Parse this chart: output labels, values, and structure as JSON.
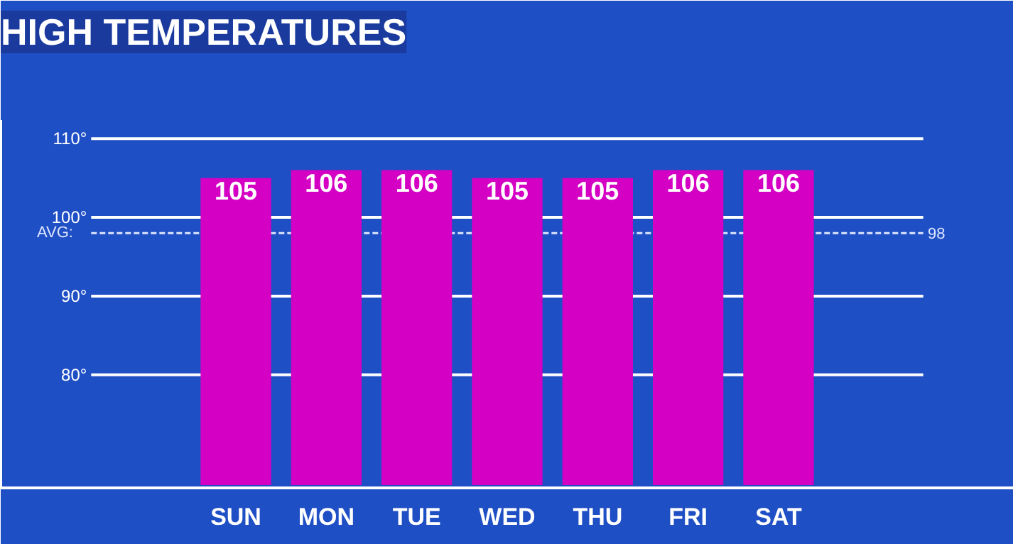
{
  "chart_data": {
    "type": "bar",
    "title": "HIGH TEMPERATURES",
    "categories": [
      "SUN",
      "MON",
      "TUE",
      "WED",
      "THU",
      "FRI",
      "SAT"
    ],
    "values": [
      105,
      106,
      106,
      105,
      105,
      106,
      106
    ],
    "color": "#d400c4",
    "data_labels": true,
    "ylim": [
      66,
      112
    ],
    "annotations": [
      "98"
    ],
    "yticks": [
      {
        "value": 80,
        "label": "80°"
      },
      {
        "value": 90,
        "label": "90°"
      },
      {
        "value": 100,
        "label": "100°"
      },
      {
        "value": 110,
        "label": "110°"
      }
    ],
    "ref_lines": [
      {
        "axis": "y",
        "value": 98,
        "label": "AVG:",
        "line_style": "dashed",
        "color": "#dde6ff"
      }
    ],
    "grid": "y"
  }
}
